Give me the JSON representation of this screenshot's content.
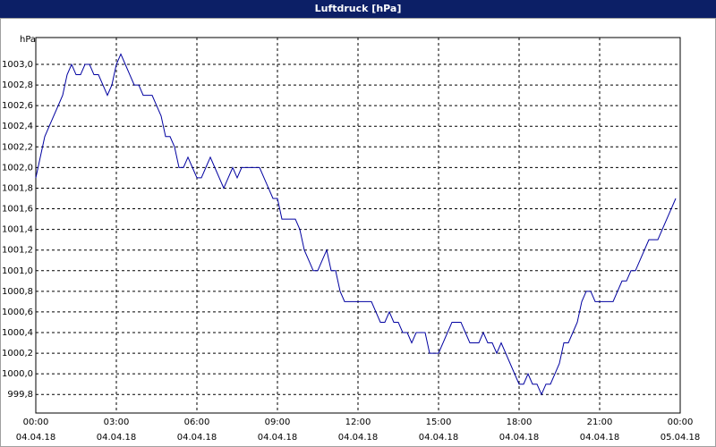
{
  "chart_data": {
    "type": "line",
    "title": "Luftdruck [hPa]",
    "y_label": "hPa",
    "x": [
      0,
      10,
      20,
      30,
      40,
      50,
      60,
      70,
      80,
      90,
      100,
      110,
      120,
      130,
      140,
      150,
      160,
      170,
      180,
      190,
      200,
      210,
      220,
      230,
      240,
      250,
      260,
      270,
      280,
      290,
      300,
      310,
      320,
      330,
      340,
      350,
      360,
      370,
      380,
      390,
      400,
      410,
      420,
      430,
      440,
      450,
      460,
      470,
      480,
      490,
      500,
      510,
      520,
      530,
      540,
      550,
      560,
      570,
      580,
      590,
      600,
      610,
      620,
      630,
      640,
      650,
      660,
      670,
      680,
      690,
      700,
      710,
      720,
      730,
      740,
      750,
      760,
      770,
      780,
      790,
      800,
      810,
      820,
      830,
      840,
      850,
      860,
      870,
      880,
      890,
      900,
      910,
      920,
      930,
      940,
      950,
      960,
      970,
      980,
      990,
      1000,
      1010,
      1020,
      1030,
      1040,
      1050,
      1060,
      1070,
      1080,
      1090,
      1100,
      1110,
      1120,
      1130,
      1140,
      1150,
      1160,
      1170,
      1180,
      1190,
      1200,
      1210,
      1220,
      1230,
      1240,
      1250,
      1260,
      1270,
      1280,
      1290,
      1300,
      1310,
      1320,
      1330,
      1340,
      1350,
      1360,
      1370,
      1380,
      1390,
      1400,
      1410,
      1420,
      1430
    ],
    "series": [
      {
        "name": "Luftdruck",
        "color": "#0000a0",
        "values": [
          1001.9,
          1002.1,
          1002.3,
          1002.4,
          1002.5,
          1002.6,
          1002.7,
          1002.9,
          1003.0,
          1002.9,
          1002.9,
          1003.0,
          1003.0,
          1002.9,
          1002.9,
          1002.8,
          1002.7,
          1002.8,
          1003.0,
          1003.1,
          1003.0,
          1002.9,
          1002.8,
          1002.8,
          1002.7,
          1002.7,
          1002.7,
          1002.6,
          1002.5,
          1002.3,
          1002.3,
          1002.2,
          1002.0,
          1002.0,
          1002.1,
          1002.0,
          1001.9,
          1001.9,
          1002.0,
          1002.1,
          1002.0,
          1001.9,
          1001.8,
          1001.9,
          1002.0,
          1001.9,
          1002.0,
          1002.0,
          1002.0,
          1002.0,
          1002.0,
          1001.9,
          1001.8,
          1001.7,
          1001.7,
          1001.5,
          1001.5,
          1001.5,
          1001.5,
          1001.4,
          1001.2,
          1001.1,
          1001.0,
          1001.0,
          1001.1,
          1001.2,
          1001.0,
          1001.0,
          1000.8,
          1000.7,
          1000.7,
          1000.7,
          1000.7,
          1000.7,
          1000.7,
          1000.7,
          1000.6,
          1000.5,
          1000.5,
          1000.6,
          1000.5,
          1000.5,
          1000.4,
          1000.4,
          1000.3,
          1000.4,
          1000.4,
          1000.4,
          1000.2,
          1000.2,
          1000.2,
          1000.3,
          1000.4,
          1000.5,
          1000.5,
          1000.5,
          1000.4,
          1000.3,
          1000.3,
          1000.3,
          1000.4,
          1000.3,
          1000.3,
          1000.2,
          1000.3,
          1000.2,
          1000.1,
          1000.0,
          999.9,
          999.9,
          1000.0,
          999.9,
          999.9,
          999.8,
          999.9,
          999.9,
          1000.0,
          1000.1,
          1000.3,
          1000.3,
          1000.4,
          1000.5,
          1000.7,
          1000.8,
          1000.8,
          1000.7,
          1000.7,
          1000.7,
          1000.7,
          1000.7,
          1000.8,
          1000.9,
          1000.9,
          1001.0,
          1001.0,
          1001.1,
          1001.2,
          1001.3,
          1001.3,
          1001.3,
          1001.4,
          1001.5,
          1001.6,
          1001.7
        ]
      }
    ],
    "xlim": [
      0,
      1440
    ],
    "xticks": [
      {
        "value": 0,
        "label": [
          "00:00",
          "04.04.18"
        ]
      },
      {
        "value": 180,
        "label": [
          "03:00",
          "04.04.18"
        ]
      },
      {
        "value": 360,
        "label": [
          "06:00",
          "04.04.18"
        ]
      },
      {
        "value": 540,
        "label": [
          "09:00",
          "04.04.18"
        ]
      },
      {
        "value": 720,
        "label": [
          "12:00",
          "04.04.18"
        ]
      },
      {
        "value": 900,
        "label": [
          "15:00",
          "04.04.18"
        ]
      },
      {
        "value": 1080,
        "label": [
          "18:00",
          "04.04.18"
        ]
      },
      {
        "value": 1260,
        "label": [
          "21:00",
          "04.04.18"
        ]
      },
      {
        "value": 1440,
        "label": [
          "00:00",
          "05.04.18"
        ]
      }
    ],
    "ylim": [
      999.62,
      1003.26
    ],
    "yticks": [
      {
        "value": 999.8,
        "label": "999,8"
      },
      {
        "value": 1000.0,
        "label": "1000,0"
      },
      {
        "value": 1000.2,
        "label": "1000,2"
      },
      {
        "value": 1000.4,
        "label": "1000,4"
      },
      {
        "value": 1000.6,
        "label": "1000,6"
      },
      {
        "value": 1000.8,
        "label": "1000,8"
      },
      {
        "value": 1001.0,
        "label": "1001,0"
      },
      {
        "value": 1001.2,
        "label": "1001,2"
      },
      {
        "value": 1001.4,
        "label": "1001,4"
      },
      {
        "value": 1001.6,
        "label": "1001,6"
      },
      {
        "value": 1001.8,
        "label": "1001,8"
      },
      {
        "value": 1002.0,
        "label": "1002,0"
      },
      {
        "value": 1002.2,
        "label": "1002,2"
      },
      {
        "value": 1002.4,
        "label": "1002,4"
      },
      {
        "value": 1002.6,
        "label": "1002,6"
      },
      {
        "value": 1002.8,
        "label": "1002,8"
      },
      {
        "value": 1003.0,
        "label": "1003,0"
      }
    ],
    "grid": true
  }
}
